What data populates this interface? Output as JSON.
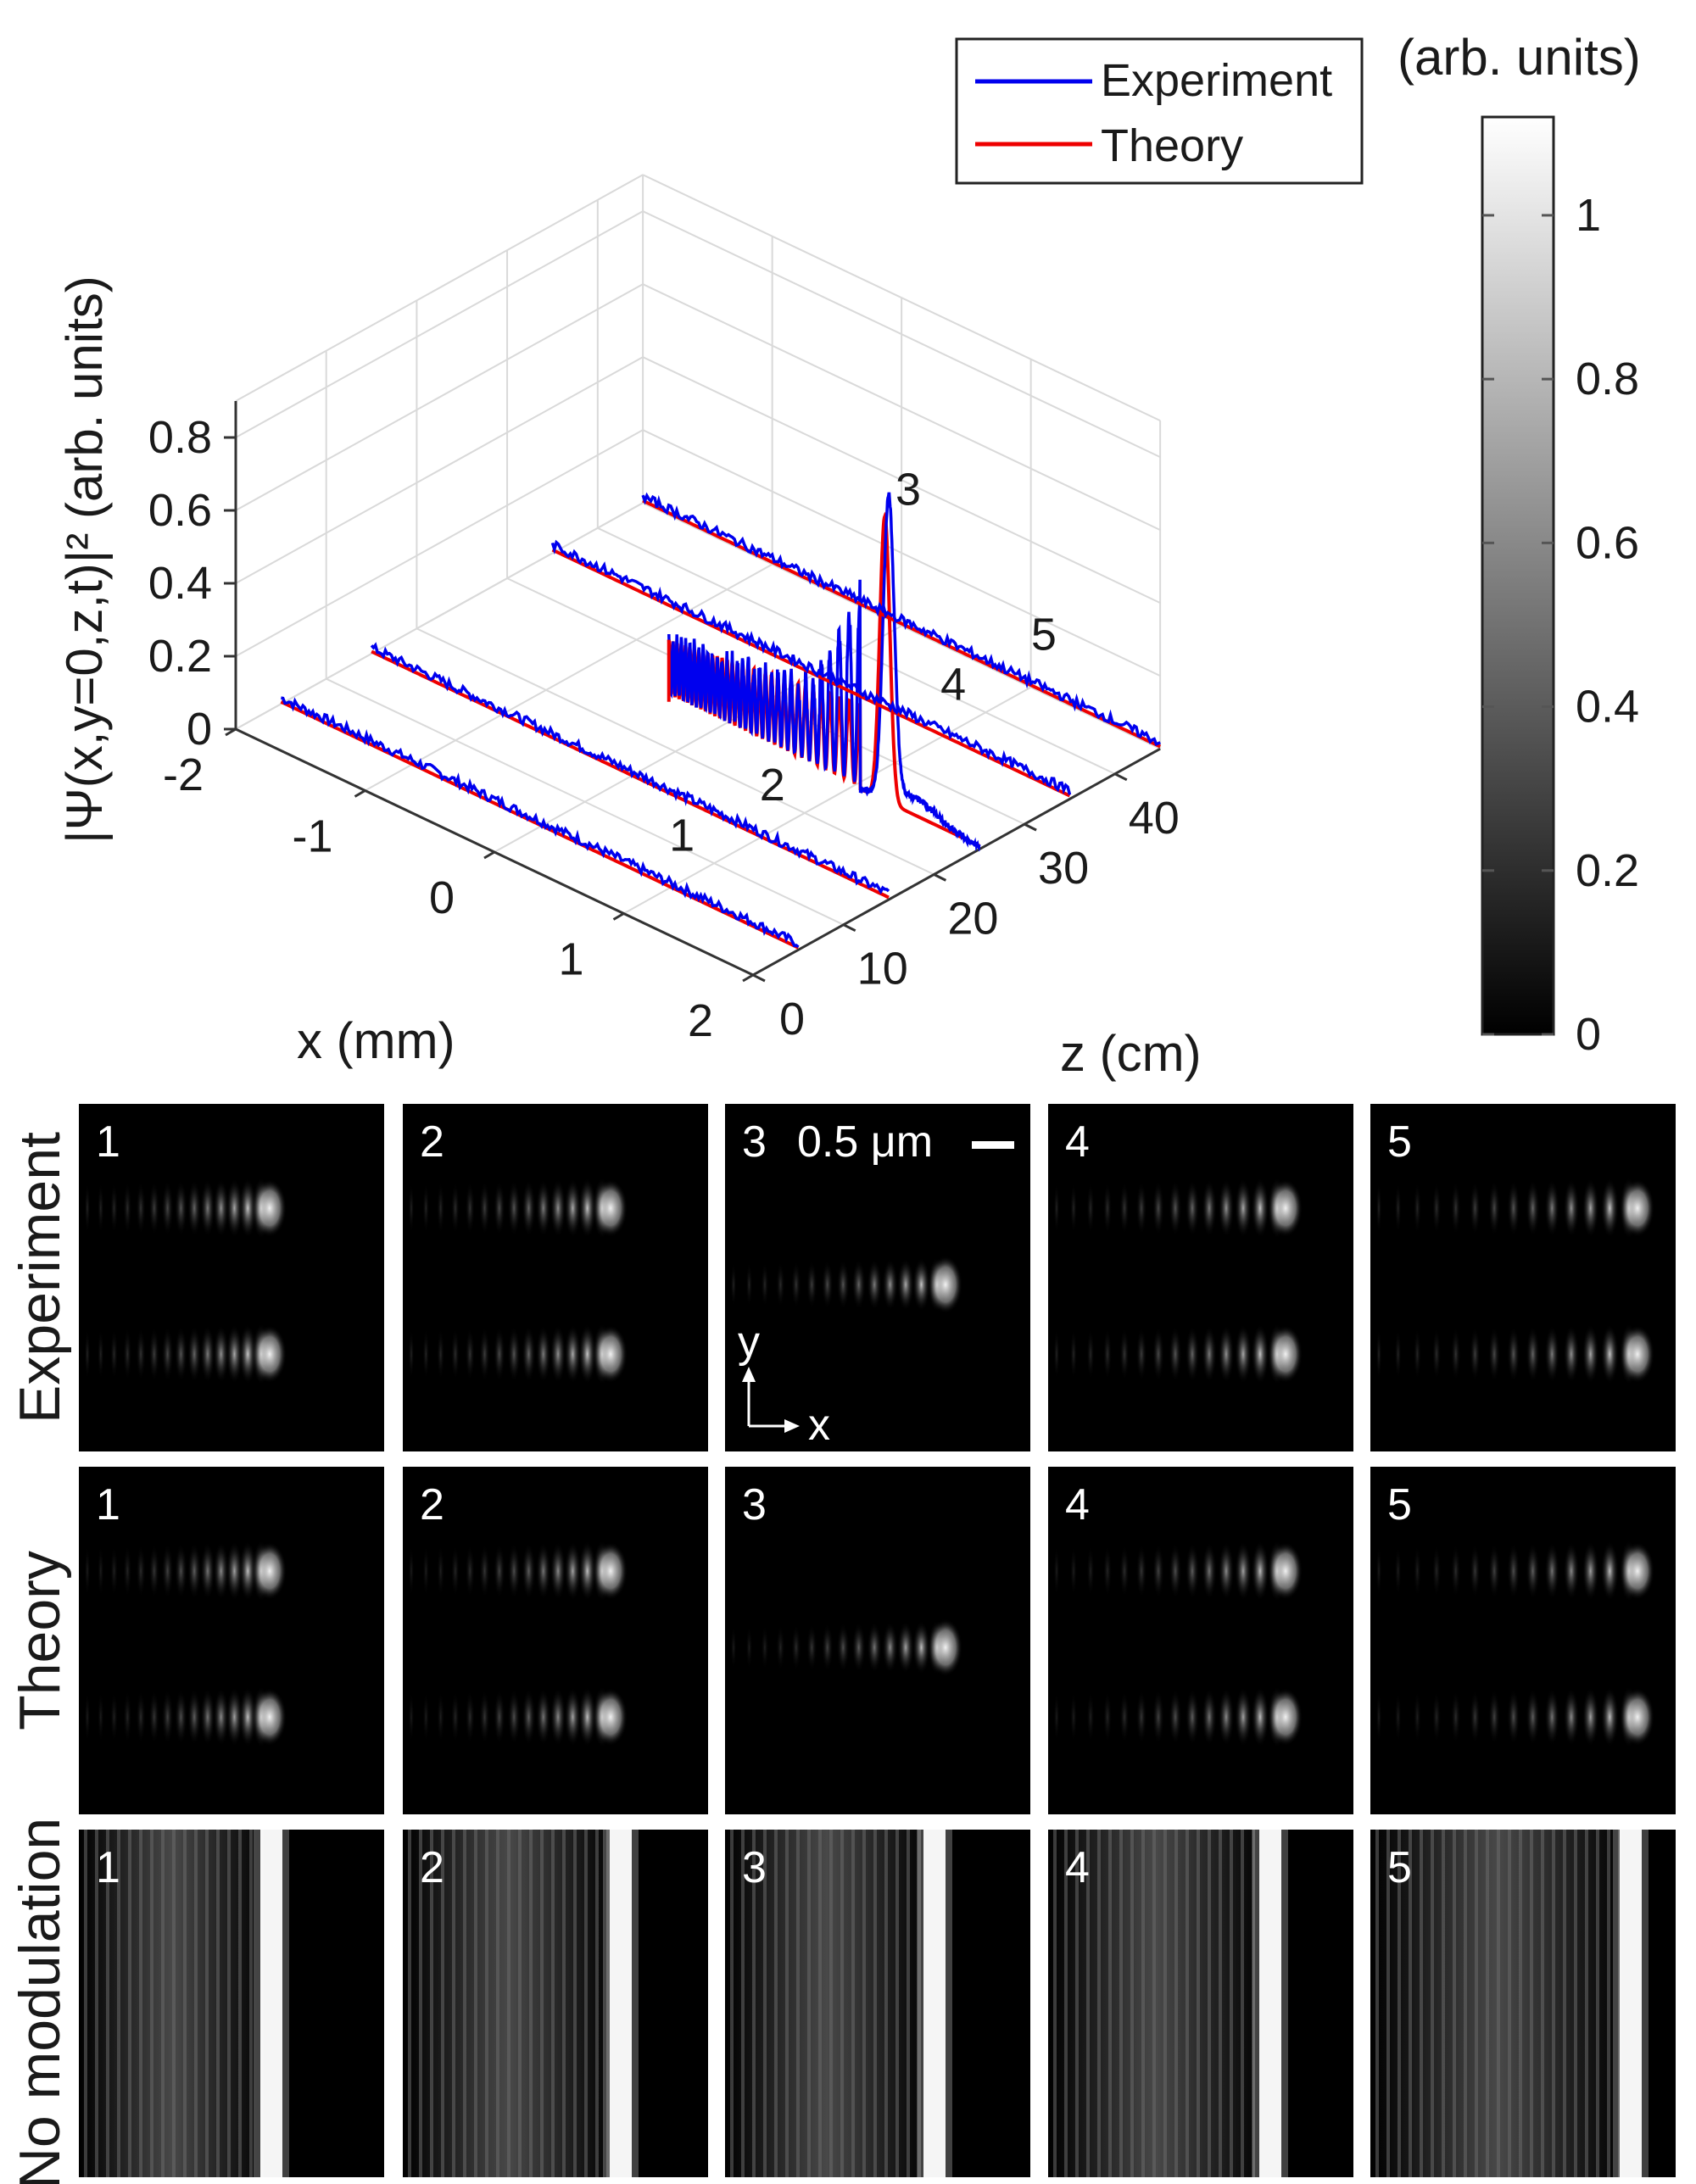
{
  "chart_data": {
    "type": "line",
    "title": "",
    "xlabel": "x (mm)",
    "ylabel": "|Ψ(x,y=0,z,t)|² (arb. units)",
    "zlabel": "z (cm)",
    "xlim": [
      -2,
      2
    ],
    "zlim": [
      0,
      45
    ],
    "ylim": [
      0,
      0.9
    ],
    "x_ticks": [
      "-2",
      "-1",
      "0",
      "1",
      "2"
    ],
    "z_ticks": [
      "0",
      "10",
      "20",
      "30",
      "40"
    ],
    "y_ticks": [
      "0",
      "0.2",
      "0.4",
      "0.6",
      "0.8"
    ],
    "legend": [
      "Experiment",
      "Theory"
    ],
    "legend_position": "top-right",
    "series": [
      {
        "name": "Experiment",
        "color": "#0000ee"
      },
      {
        "name": "Theory",
        "color": "#ee0000"
      }
    ],
    "profiles": [
      {
        "label": "1",
        "z": 5,
        "peak": 0.02
      },
      {
        "label": "2",
        "z": 15,
        "peak": 0.02
      },
      {
        "label": "3",
        "z": 25,
        "peak": 0.78,
        "osc_amp": 0.15
      },
      {
        "label": "4",
        "z": 35,
        "peak": 0.03
      },
      {
        "label": "5",
        "z": 45,
        "peak": 0.02
      }
    ],
    "colorbar": {
      "title": "(arb. units)",
      "ticks": [
        "0",
        "0.2",
        "0.4",
        "0.6",
        "0.8",
        "1"
      ],
      "range": [
        0,
        1.12
      ]
    }
  },
  "panels": {
    "row_labels": [
      "Experiment",
      "Theory",
      "No modulation"
    ],
    "numbers": [
      "1",
      "2",
      "3",
      "4",
      "5"
    ],
    "scalebar_label": "0.5 μm",
    "axis_y": "y",
    "axis_x": "x"
  }
}
